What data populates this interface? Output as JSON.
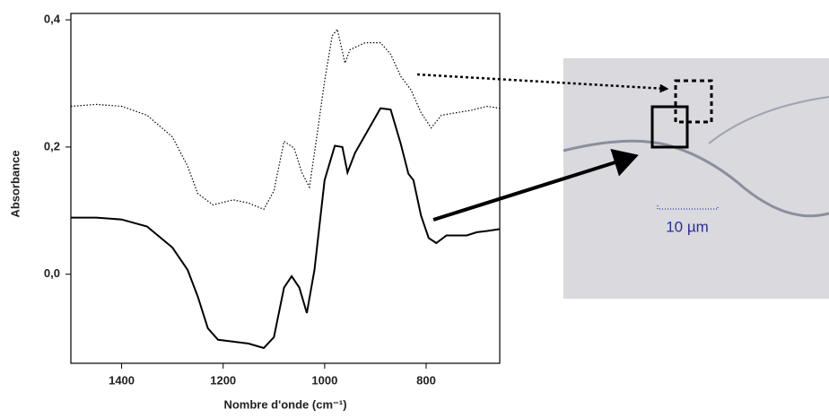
{
  "chart_data": {
    "type": "line",
    "x_label": "Nombre d'onde (cm⁻¹)",
    "y_label": "Absorbance",
    "xlim": [
      1500,
      655
    ],
    "xticks": [
      1400,
      1200,
      1000,
      800
    ],
    "ylim": [
      -0.14,
      0.41
    ],
    "yticks": [
      {
        "value": 0.0,
        "label": "0,0"
      },
      {
        "value": 0.2,
        "label": "0,2"
      },
      {
        "value": 0.4,
        "label": "0,4"
      }
    ],
    "scale_label": "10 µm",
    "series": [
      {
        "color": "#000000",
        "dash": "solid",
        "x": [
          1500,
          1450,
          1400,
          1350,
          1300,
          1270,
          1250,
          1230,
          1210,
          1180,
          1150,
          1120,
          1100,
          1080,
          1065,
          1050,
          1035,
          1020,
          1000,
          980,
          965,
          955,
          940,
          910,
          890,
          870,
          850,
          835,
          825,
          810,
          795,
          780,
          760,
          740,
          720,
          700,
          680,
          655
        ],
        "values": [
          0.089,
          0.089,
          0.086,
          0.075,
          0.042,
          0.007,
          -0.035,
          -0.085,
          -0.103,
          -0.106,
          -0.109,
          -0.116,
          -0.099,
          -0.021,
          -0.003,
          -0.021,
          -0.061,
          0.007,
          0.148,
          0.202,
          0.2,
          0.16,
          0.191,
          0.233,
          0.261,
          0.259,
          0.205,
          0.158,
          0.148,
          0.092,
          0.057,
          0.049,
          0.061,
          0.061,
          0.061,
          0.066,
          0.068,
          0.071
        ]
      },
      {
        "color": "#000000",
        "dash": "dotted",
        "x": [
          1500,
          1450,
          1400,
          1350,
          1300,
          1270,
          1250,
          1220,
          1180,
          1150,
          1120,
          1100,
          1080,
          1060,
          1045,
          1030,
          1015,
          1000,
          985,
          975,
          960,
          950,
          920,
          890,
          870,
          850,
          830,
          810,
          790,
          770,
          740,
          710,
          680,
          655
        ],
        "values": [
          0.264,
          0.267,
          0.264,
          0.25,
          0.216,
          0.17,
          0.127,
          0.109,
          0.117,
          0.112,
          0.102,
          0.131,
          0.209,
          0.198,
          0.16,
          0.137,
          0.219,
          0.304,
          0.375,
          0.385,
          0.332,
          0.353,
          0.364,
          0.364,
          0.346,
          0.311,
          0.29,
          0.254,
          0.23,
          0.25,
          0.254,
          0.258,
          0.264,
          0.261
        ]
      }
    ]
  }
}
